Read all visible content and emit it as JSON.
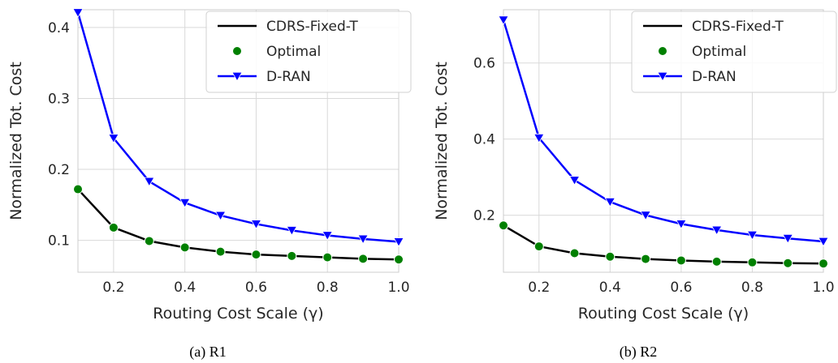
{
  "figure": {
    "captions": [
      "(a) R1",
      "(b) R2"
    ]
  },
  "chart_data": [
    {
      "type": "line",
      "id": "R1",
      "caption": "(a) R1",
      "xlabel": "Routing Cost Scale (γ)",
      "ylabel": "Normalized Tot. Cost",
      "xlim": [
        0.1,
        1.0
      ],
      "ylim": [
        0.055,
        0.425
      ],
      "xticks": [
        0.2,
        0.4,
        0.6,
        0.8,
        1.0
      ],
      "xtick_labels": [
        "0.2",
        "0.4",
        "0.6",
        "0.8",
        "1.0"
      ],
      "yticks": [
        0.1,
        0.2,
        0.3,
        0.4
      ],
      "ytick_labels": [
        "0.1",
        "0.2",
        "0.3",
        "0.4"
      ],
      "grid": true,
      "legend_position": "top-right",
      "x": [
        0.1,
        0.2,
        0.3,
        0.4,
        0.5,
        0.6,
        0.7,
        0.8,
        0.9,
        1.0
      ],
      "series": [
        {
          "name": "CDRS-Fixed-T",
          "style": "line",
          "color": "#000000",
          "values": [
            0.172,
            0.118,
            0.099,
            0.09,
            0.084,
            0.08,
            0.078,
            0.076,
            0.074,
            0.073
          ]
        },
        {
          "name": "Optimal",
          "style": "marker-circle",
          "color": "#008000",
          "values": [
            0.172,
            0.118,
            0.099,
            0.09,
            0.084,
            0.08,
            0.078,
            0.076,
            0.074,
            0.073
          ]
        },
        {
          "name": "D-RAN",
          "style": "line-marker-triangle-down",
          "color": "#0000ff",
          "values": [
            0.421,
            0.244,
            0.183,
            0.153,
            0.135,
            0.123,
            0.114,
            0.107,
            0.102,
            0.098
          ]
        }
      ]
    },
    {
      "type": "line",
      "id": "R2",
      "caption": "(b) R2",
      "xlabel": "Routing Cost Scale (γ)",
      "ylabel": "Normalized Tot. Cost",
      "xlim": [
        0.1,
        1.0
      ],
      "ylim": [
        0.05,
        0.74
      ],
      "xticks": [
        0.2,
        0.4,
        0.6,
        0.8,
        1.0
      ],
      "xtick_labels": [
        "0.2",
        "0.4",
        "0.6",
        "0.8",
        "1.0"
      ],
      "yticks": [
        0.2,
        0.4,
        0.6
      ],
      "ytick_labels": [
        "0.2",
        "0.4",
        "0.6"
      ],
      "grid": true,
      "legend_position": "top-right",
      "x": [
        0.1,
        0.2,
        0.3,
        0.4,
        0.5,
        0.6,
        0.7,
        0.8,
        0.9,
        1.0
      ],
      "series": [
        {
          "name": "CDRS-Fixed-T",
          "style": "line",
          "color": "#000000",
          "values": [
            0.173,
            0.118,
            0.1,
            0.091,
            0.085,
            0.081,
            0.078,
            0.076,
            0.074,
            0.073
          ]
        },
        {
          "name": "Optimal",
          "style": "marker-circle",
          "color": "#008000",
          "values": [
            0.173,
            0.118,
            0.1,
            0.091,
            0.085,
            0.081,
            0.078,
            0.076,
            0.074,
            0.073
          ]
        },
        {
          "name": "D-RAN",
          "style": "line-marker-triangle-down",
          "color": "#0000ff",
          "values": [
            0.713,
            0.403,
            0.292,
            0.235,
            0.2,
            0.177,
            0.161,
            0.148,
            0.139,
            0.131
          ]
        }
      ]
    }
  ]
}
